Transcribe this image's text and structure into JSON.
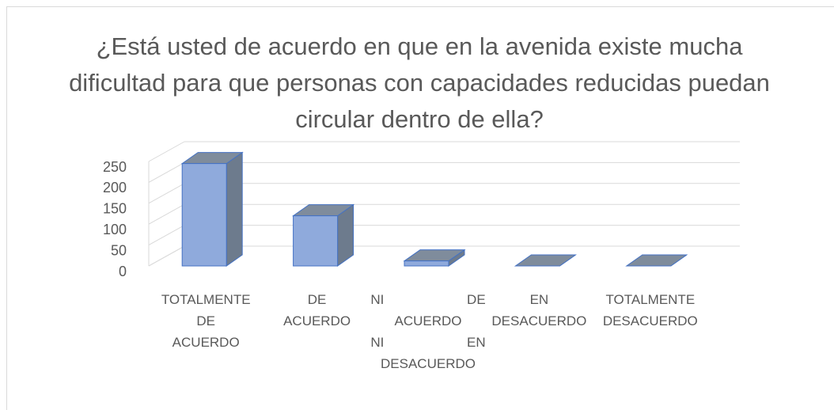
{
  "chart_data": {
    "type": "bar3d",
    "title": "¿Está usted de acuerdo en que en la avenida existe mucha dificultad para que personas con capacidades reducidas puedan circular dentro de ella?",
    "categories": [
      "TOTALMENTE DE ACUERDO",
      "DE ACUERDO",
      "NI DE ACUERDO NI EN DESACUERDO",
      "EN DESACUERDO",
      "TOTALMENTE DESACUERDO"
    ],
    "values": [
      245,
      120,
      12,
      0,
      0
    ],
    "color": "#8faadc",
    "ylim": [
      0,
      250
    ],
    "yticks": [
      0,
      50,
      100,
      150,
      200,
      250
    ],
    "grid": true
  }
}
